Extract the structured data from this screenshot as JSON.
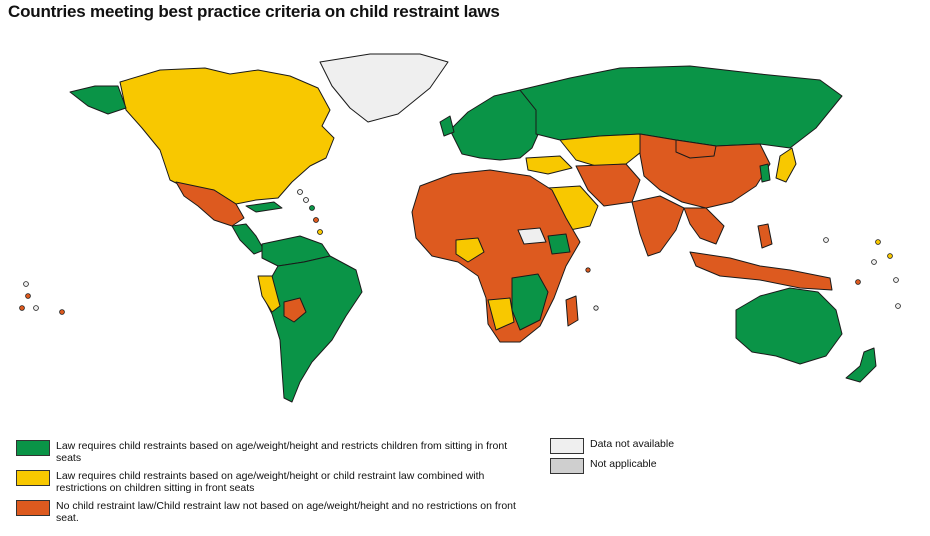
{
  "title": "Countries meeting best practice criteria on child restraint laws",
  "colors": {
    "green": "#0a9447",
    "yellow": "#f8c800",
    "orange": "#dd5a1f",
    "no_data": "#efefef",
    "not_applicable": "#cfcfcf"
  },
  "legend": {
    "green": "Law requires child restraints based on age/weight/height and restricts children from sitting in front seats",
    "yellow": "Law requires child restraints based on age/weight/height or child restraint law combined with restrictions on children sitting in front seats",
    "orange": "No child restraint law/Child restraint law not based on age/weight/height and no restrictions on front seat.",
    "no_data": "Data not available",
    "not_applicable": "Not applicable"
  }
}
